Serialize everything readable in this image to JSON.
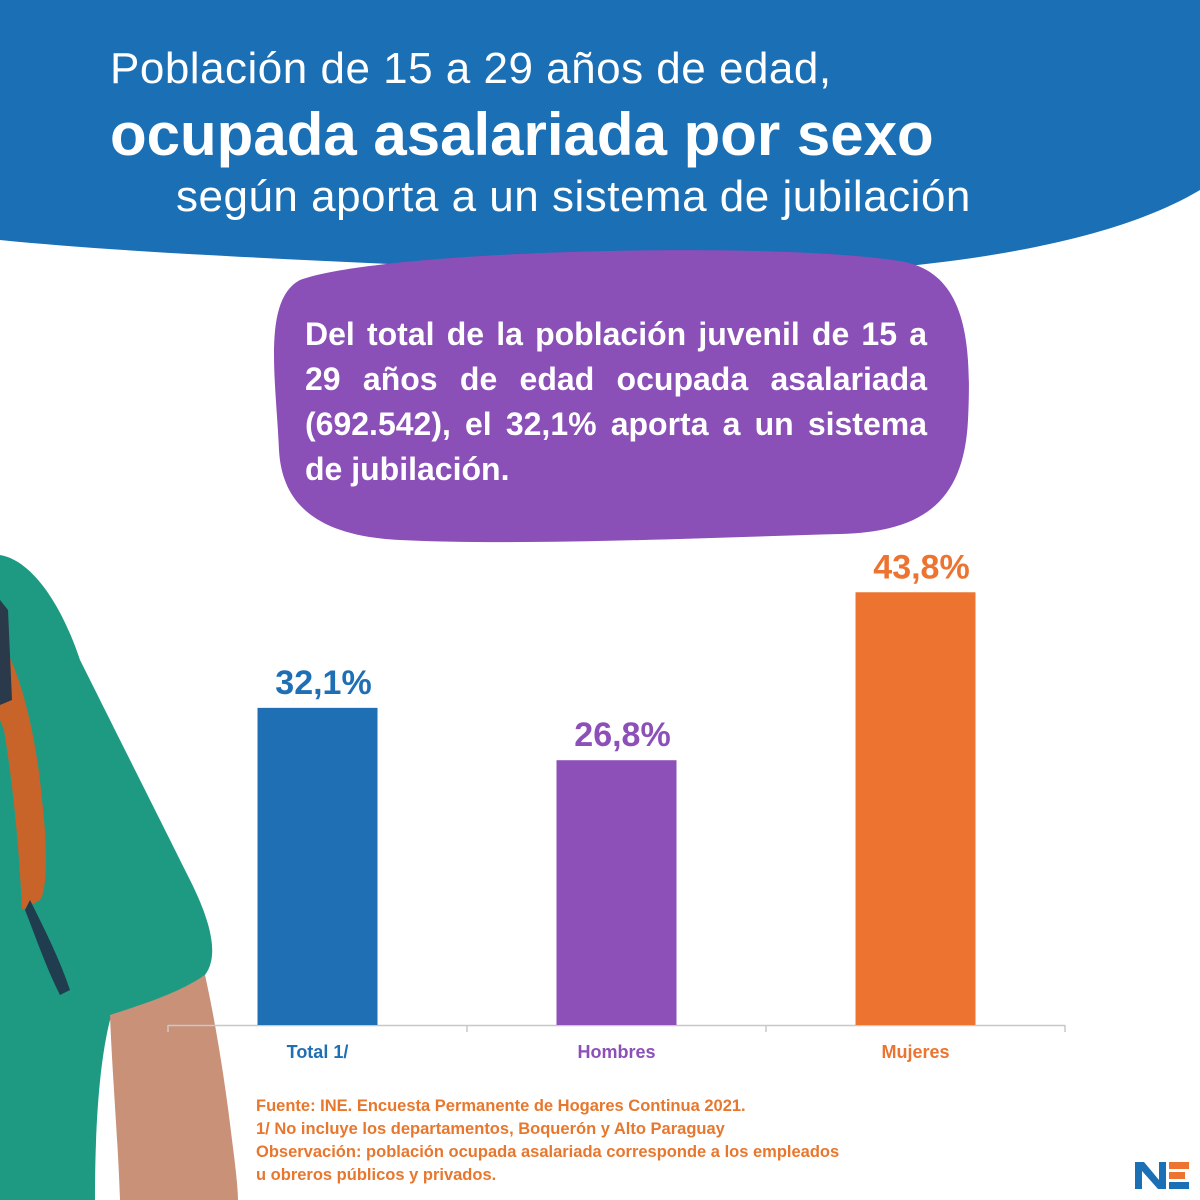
{
  "header": {
    "line1": "Población de 15 a 29 años de edad,",
    "line2": "ocupada asalariada por sexo",
    "line3": "según aporta a un sistema de jubilación"
  },
  "callout": {
    "text": "Del total de la población juvenil de 15 a 29 años de edad ocupada asalariada (692.542), el 32,1% aporta a un sistema de jubilación."
  },
  "chart_data": {
    "type": "bar",
    "categories": [
      "Total 1/",
      "Hombres",
      "Mujeres"
    ],
    "values": [
      32.1,
      26.8,
      43.8
    ],
    "value_labels": [
      "32,1%",
      "26,8%",
      "43,8%"
    ],
    "colors": [
      "#1f6fb5",
      "#8d4fb8",
      "#ec7430"
    ],
    "title": "",
    "xlabel": "",
    "ylabel": "",
    "ylim": [
      0,
      45
    ],
    "grid": false,
    "legend": "none"
  },
  "notes": {
    "source": "Fuente: INE. Encuesta Permanente de Hogares Continua 2021.",
    "footnote": "1/ No incluye los departamentos, Boquerón y Alto Paraguay",
    "observation_1": "Observación: población ocupada asalariada corresponde a los empleados",
    "observation_2": "u obreros públicos y privados."
  },
  "logo": {
    "text": "INE"
  },
  "colors": {
    "header_blue": "#1a6fb5",
    "callout_purple": "#8b4fb8",
    "notes_orange": "#e8772e",
    "shirt_green": "#1f9a82",
    "strap_orange": "#c8642a"
  }
}
